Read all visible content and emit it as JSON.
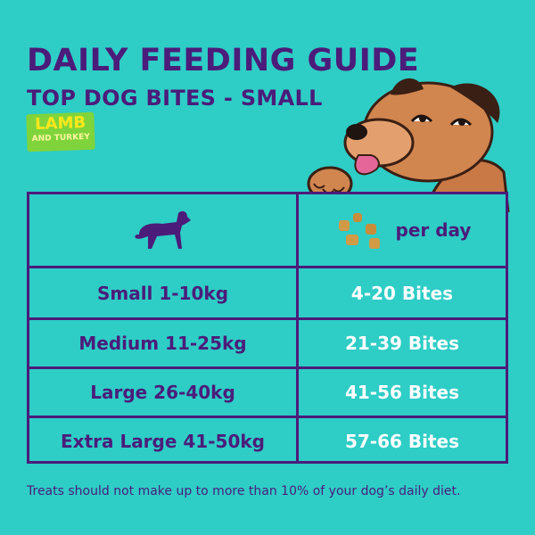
{
  "header": {
    "title": "DAILY FEEDING GUIDE",
    "subtitle": "TOP DOG BITES - SMALL",
    "badge_line1": "LAMB",
    "badge_line2": "AND TURKEY"
  },
  "table": {
    "dog_icon": "dog-silhouette-icon",
    "treats_icon": "treat-bites-icon",
    "per_day_label": "per day",
    "rows": [
      {
        "size": "Small 1-10kg",
        "bites": "4-20 Bites"
      },
      {
        "size": "Medium 11-25kg",
        "bites": "21-39 Bites"
      },
      {
        "size": "Large 26-40kg",
        "bites": "41-56 Bites"
      },
      {
        "size": "Extra Large 41-50kg",
        "bites": "57-66 Bites"
      }
    ]
  },
  "footnote": "Treats should not make up to more than 10% of your dog’s daily diet.",
  "colors": {
    "background": "#2ecdc6",
    "primary": "#4b1c7a",
    "badge": "#7fd43b",
    "badge_text": "#ffe81a",
    "bites_text": "#ffffff"
  }
}
